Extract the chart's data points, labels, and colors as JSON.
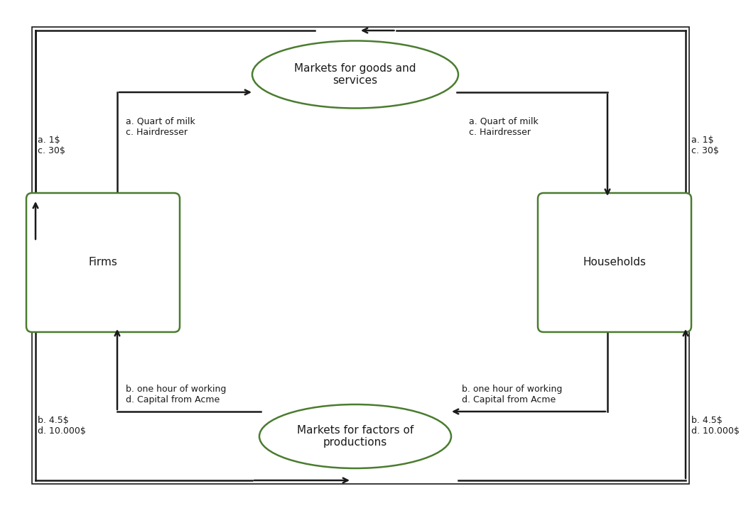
{
  "background_color": "#ffffff",
  "border_color": "#1a1a1a",
  "shape_edge_color": "#4a7c2f",
  "shape_face_color": "#ffffff",
  "text_color": "#1a1a1a",
  "firms_label": "Firms",
  "households_label": "Households",
  "top_ellipse_label": "Markets for goods and\nservices",
  "bottom_ellipse_label": "Markets for factors of\nproductions",
  "top_left_label": "a. Quart of milk\nc. Hairdresser",
  "top_right_label": "a. Quart of milk\nc. Hairdresser",
  "bottom_left_label": "b. one hour of working\nd. Capital from Acme",
  "bottom_right_label": "b. one hour of working\nd. Capital from Acme",
  "left_top_label": "a. 1$\nc. 30$",
  "right_top_label": "a. 1$\nc. 30$",
  "left_bottom_label": "b. 4.5$\nd. 10.000$",
  "right_bottom_label": "b. 4.5$\nd. 10.000$",
  "font_size_labels": 9,
  "font_size_nodes": 11,
  "arrow_color": "#1a1a1a",
  "line_color": "#1a1a1a"
}
